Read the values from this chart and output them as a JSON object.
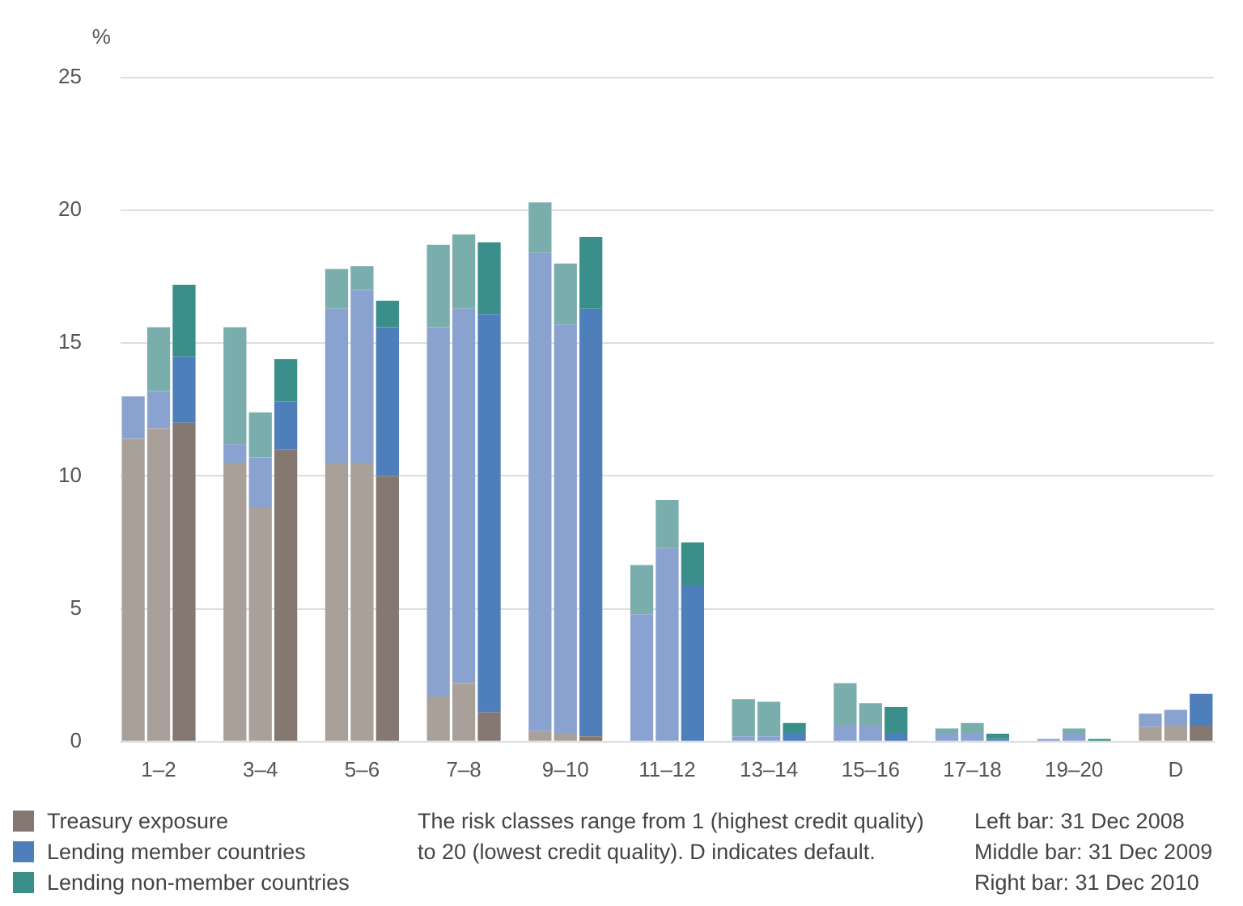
{
  "chart_data": {
    "type": "bar",
    "stacked": true,
    "ylabel": "%",
    "categories": [
      null,
      "1–2",
      null,
      null,
      null,
      "3–4",
      null,
      null,
      null,
      "5–6",
      null,
      null,
      null,
      "7–8",
      null,
      null,
      null,
      "9–10",
      null,
      null,
      null,
      "11–12",
      null,
      null,
      null,
      "13–14",
      null,
      null,
      null,
      "15–16",
      null,
      null,
      null,
      "17–18",
      null,
      null,
      null,
      "19–20",
      null,
      null,
      null,
      "D",
      null
    ],
    "ylim": [
      0,
      25
    ],
    "yticks": [
      0,
      5,
      10,
      15,
      20,
      25
    ],
    "grid": "y",
    "legend": "bottom left",
    "series": [
      {
        "name": "Treasury exposure",
        "color": "#857870",
        "values": [
          11.4,
          11.8,
          12.0,
          null,
          10.5,
          8.8,
          11.0,
          null,
          10.5,
          10.5,
          10.0,
          null,
          1.7,
          2.2,
          1.1,
          null,
          0.4,
          0.3,
          0.2,
          null,
          0,
          0,
          0,
          null,
          0,
          0,
          0,
          null,
          0,
          0,
          0,
          null,
          0,
          0,
          0,
          null,
          0,
          0,
          0,
          null,
          0.55,
          0.6,
          0.6
        ],
        "colors": [
          "#aaa09a",
          "#aaa09a",
          "#857870",
          null,
          "#aaa09a",
          "#aaa09a",
          "#857870",
          null,
          "#aaa09a",
          "#aaa09a",
          "#857870",
          null,
          "#aaa09a",
          "#aaa09a",
          "#857870",
          null,
          "#aaa09a",
          "#aaa09a",
          "#857870",
          null,
          "#aaa09a",
          "#aaa09a",
          "#857870",
          null,
          "#aaa09a",
          "#aaa09a",
          "#857870",
          null,
          "#aaa09a",
          "#aaa09a",
          "#857870",
          null,
          "#aaa09a",
          "#aaa09a",
          "#857870",
          null,
          "#aaa09a",
          "#aaa09a",
          "#857870",
          null,
          "#aaa09a",
          "#aaa09a",
          "#857870"
        ]
      },
      {
        "name": "Lending member countries",
        "color": "#4f7fbb",
        "values": [
          1.6,
          1.4,
          2.5,
          null,
          0.7,
          1.9,
          1.8,
          null,
          5.8,
          6.5,
          5.6,
          null,
          13.9,
          14.1,
          15.0,
          null,
          18.0,
          15.4,
          16.1,
          null,
          4.8,
          7.3,
          5.9,
          null,
          0.2,
          0.2,
          0.3,
          null,
          0.6,
          0.6,
          0.3,
          null,
          0.3,
          0.3,
          0.1,
          null,
          0.1,
          0.3,
          0,
          null,
          0.5,
          0.6,
          1.2
        ],
        "colors": [
          "#8aa2cf",
          "#8aa2cf",
          "#4f7fbb",
          null,
          "#8aa2cf",
          "#8aa2cf",
          "#4f7fbb",
          null,
          "#8aa2cf",
          "#8aa2cf",
          "#4f7fbb",
          null,
          "#8aa2cf",
          "#8aa2cf",
          "#4f7fbb",
          null,
          "#8aa2cf",
          "#8aa2cf",
          "#4f7fbb",
          null,
          "#8aa2cf",
          "#8aa2cf",
          "#4f7fbb",
          null,
          "#8aa2cf",
          "#8aa2cf",
          "#4f7fbb",
          null,
          "#8aa2cf",
          "#8aa2cf",
          "#4f7fbb",
          null,
          "#8aa2cf",
          "#8aa2cf",
          "#4f7fbb",
          null,
          "#8aa2cf",
          "#8aa2cf",
          "#4f7fbb",
          null,
          "#8aa2cf",
          "#8aa2cf",
          "#4f7fbb"
        ]
      },
      {
        "name": "Lending non-member countries",
        "color": "#3a8f8a",
        "values": [
          0,
          2.4,
          2.7,
          null,
          4.4,
          1.7,
          1.6,
          null,
          1.5,
          0.9,
          1.0,
          null,
          3.1,
          2.8,
          2.7,
          null,
          1.9,
          2.3,
          2.7,
          null,
          1.85,
          1.8,
          1.6,
          null,
          1.4,
          1.3,
          0.4,
          null,
          1.6,
          0.85,
          1.0,
          null,
          0.2,
          0.4,
          0.2,
          null,
          0,
          0.2,
          0.1,
          null,
          0,
          0,
          0
        ],
        "colors": [
          "#7aaeac",
          "#7aaeac",
          "#3a8f8a",
          null,
          "#7aaeac",
          "#7aaeac",
          "#3a8f8a",
          null,
          "#7aaeac",
          "#7aaeac",
          "#3a8f8a",
          null,
          "#7aaeac",
          "#7aaeac",
          "#3a8f8a",
          null,
          "#7aaeac",
          "#7aaeac",
          "#3a8f8a",
          null,
          "#7aaeac",
          "#7aaeac",
          "#3a8f8a",
          null,
          "#7aaeac",
          "#7aaeac",
          "#3a8f8a",
          null,
          "#7aaeac",
          "#7aaeac",
          "#3a8f8a",
          null,
          "#7aaeac",
          "#7aaeac",
          "#3a8f8a",
          null,
          "#7aaeac",
          "#7aaeac",
          "#3a8f8a",
          null,
          "#7aaeac",
          "#7aaeac",
          "#3a8f8a"
        ]
      }
    ],
    "annotations": [
      "The risk classes range from 1 (highest credit quality) to 20 (lowest credit quality). D indicates default.",
      "Left bar: 31 Dec 2008",
      "Middle bar: 31 Dec 2009",
      "Right bar: 31 Dec 2010"
    ]
  }
}
